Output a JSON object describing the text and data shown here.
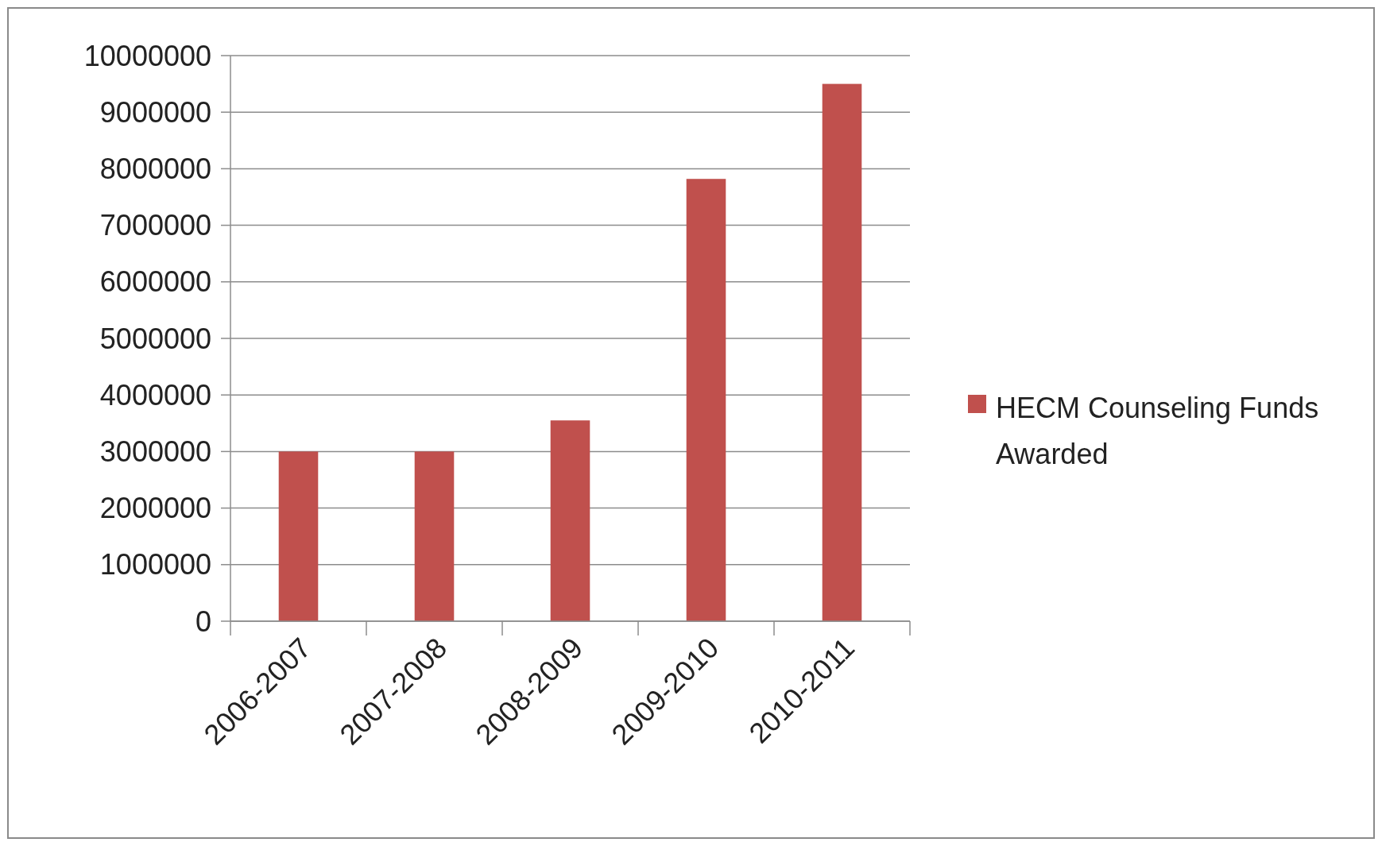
{
  "chart_data": {
    "type": "bar",
    "categories": [
      "2006-2007",
      "2007-2008",
      "2008-2009",
      "2009-2010",
      "2010-2011"
    ],
    "series": [
      {
        "name": "HECM Counseling Funds Awarded",
        "color": "#c0504d",
        "values": [
          3000000,
          3000000,
          3550000,
          7820000,
          9500000
        ]
      }
    ],
    "ylim": [
      0,
      10000000
    ],
    "yticks": [
      0,
      1000000,
      2000000,
      3000000,
      4000000,
      5000000,
      6000000,
      7000000,
      8000000,
      9000000,
      10000000
    ],
    "grid": "y",
    "legend": "right"
  }
}
